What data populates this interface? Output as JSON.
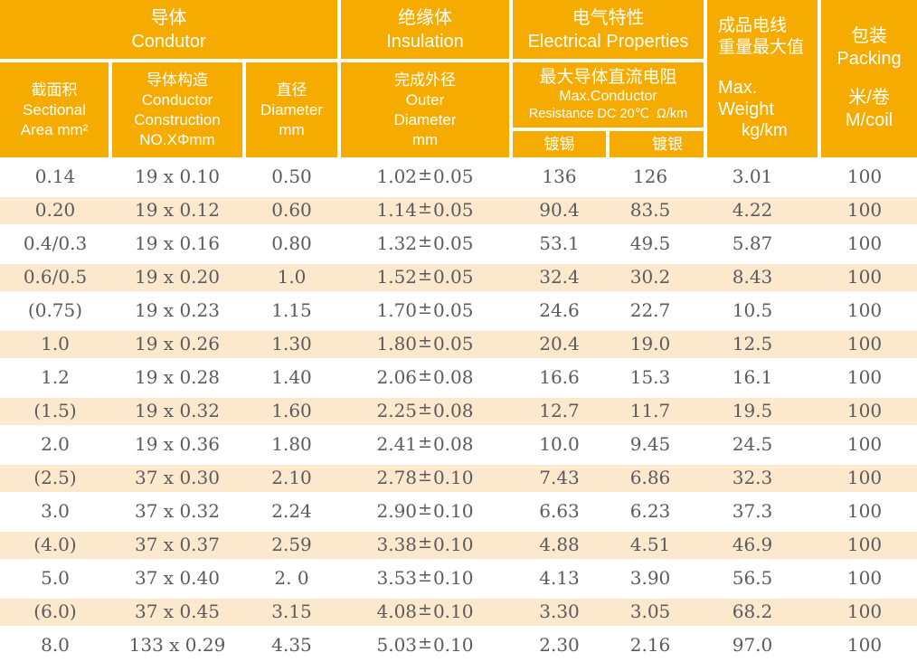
{
  "colors": {
    "header_orange": "#F6AB00",
    "row_stripe": "#FBE8CD",
    "data_text": "#5B5B5D",
    "header_text": "#FFFFFF"
  },
  "header": {
    "conductor": {
      "zh": "导体",
      "en": "Condutor"
    },
    "insulation": {
      "zh": "绝缘体",
      "en": "Insulation"
    },
    "electrical": {
      "zh": "电气特性",
      "en": "Electrical Properties"
    },
    "weight": {
      "lines": [
        "成品电线",
        "重量最大值",
        "Max. Weight",
        "kg/km"
      ]
    },
    "packing": {
      "lines": [
        "包装",
        "Packing",
        "米/卷",
        "M/coil"
      ]
    },
    "sectional": {
      "lines": [
        "截面积",
        "Sectional",
        "Area mm²"
      ]
    },
    "construction": {
      "lines": [
        "导体构造",
        "Conductor",
        "Construction",
        "NO.XΦmm"
      ]
    },
    "diameter": {
      "lines": [
        "直径",
        "Diameter",
        "mm"
      ]
    },
    "outer": {
      "lines": [
        "完成外径",
        "Outer",
        "Diameter",
        "mm"
      ]
    },
    "resistance": {
      "lines": [
        "最大导体直流电阻",
        "Max.Conductor",
        "Resistance DC 20℃  Ω/km"
      ]
    },
    "tinned": "镀锡",
    "silvered": "镀银"
  },
  "plus_minus": "±",
  "rows": [
    {
      "area": "0.14",
      "construction": "19 x 0.10",
      "diameter": "0.50",
      "od": "1.02",
      "tol": "0.05",
      "tinned": "136",
      "silvered": "126",
      "weight": "3.01",
      "coil": "100"
    },
    {
      "area": "0.20",
      "construction": "19 x 0.12",
      "diameter": "0.60",
      "od": "1.14",
      "tol": "0.05",
      "tinned": "90.4",
      "silvered": "83.5",
      "weight": "4.22",
      "coil": "100"
    },
    {
      "area": "0.4/0.3",
      "construction": "19 x 0.16",
      "diameter": "0.80",
      "od": "1.32",
      "tol": "0.05",
      "tinned": "53.1",
      "silvered": "49.5",
      "weight": "5.87",
      "coil": "100"
    },
    {
      "area": "0.6/0.5",
      "construction": "19 x 0.20",
      "diameter": "1.0",
      "od": "1.52",
      "tol": "0.05",
      "tinned": "32.4",
      "silvered": "30.2",
      "weight": "8.43",
      "coil": "100"
    },
    {
      "area": "(0.75)",
      "construction": "19 x 0.23",
      "diameter": "1.15",
      "od": "1.70",
      "tol": "0.05",
      "tinned": "24.6",
      "silvered": "22.7",
      "weight": "10.5",
      "coil": "100"
    },
    {
      "area": "1.0",
      "construction": "19 x 0.26",
      "diameter": "1.30",
      "od": "1.80",
      "tol": "0.05",
      "tinned": "20.4",
      "silvered": "19.0",
      "weight": "12.5",
      "coil": "100"
    },
    {
      "area": "1.2",
      "construction": "19 x 0.28",
      "diameter": "1.40",
      "od": "2.06",
      "tol": "0.08",
      "tinned": "16.6",
      "silvered": "15.3",
      "weight": "16.1",
      "coil": "100"
    },
    {
      "area": "(1.5)",
      "construction": "19 x 0.32",
      "diameter": "1.60",
      "od": "2.25",
      "tol": "0.08",
      "tinned": "12.7",
      "silvered": "11.7",
      "weight": "19.5",
      "coil": "100"
    },
    {
      "area": "2.0",
      "construction": "19 x 0.36",
      "diameter": "1.80",
      "od": "2.41",
      "tol": "0.08",
      "tinned": "10.0",
      "silvered": "9.45",
      "weight": "24.5",
      "coil": "100"
    },
    {
      "area": "(2.5)",
      "construction": "37 x 0.30",
      "diameter": "2.10",
      "od": "2.78",
      "tol": "0.10",
      "tinned": "7.43",
      "silvered": "6.86",
      "weight": "32.3",
      "coil": "100"
    },
    {
      "area": "3.0",
      "construction": "37 x 0.32",
      "diameter": "2.24",
      "od": "2.90",
      "tol": "0.10",
      "tinned": "6.63",
      "silvered": "6.23",
      "weight": "37.3",
      "coil": "100"
    },
    {
      "area": "(4.0)",
      "construction": "37 x 0.37",
      "diameter": "2.59",
      "od": "3.38",
      "tol": "0.10",
      "tinned": "4.88",
      "silvered": "4.51",
      "weight": "46.9",
      "coil": "100"
    },
    {
      "area": "5.0",
      "construction": "37 x 0.40",
      "diameter": "2. 0",
      "od": "3.53",
      "tol": "0.10",
      "tinned": "4.13",
      "silvered": "3.90",
      "weight": "56.5",
      "coil": "100"
    },
    {
      "area": "(6.0)",
      "construction": "37 x 0.45",
      "diameter": "3.15",
      "od": "4.08",
      "tol": "0.10",
      "tinned": "3.30",
      "silvered": "3.05",
      "weight": "68.2",
      "coil": "100"
    },
    {
      "area": "8.0",
      "construction": "133 x 0.29",
      "diameter": "4.35",
      "od": "5.03",
      "tol": "0.10",
      "tinned": "2.30",
      "silvered": "2.16",
      "weight": "97.0",
      "coil": "100"
    }
  ]
}
